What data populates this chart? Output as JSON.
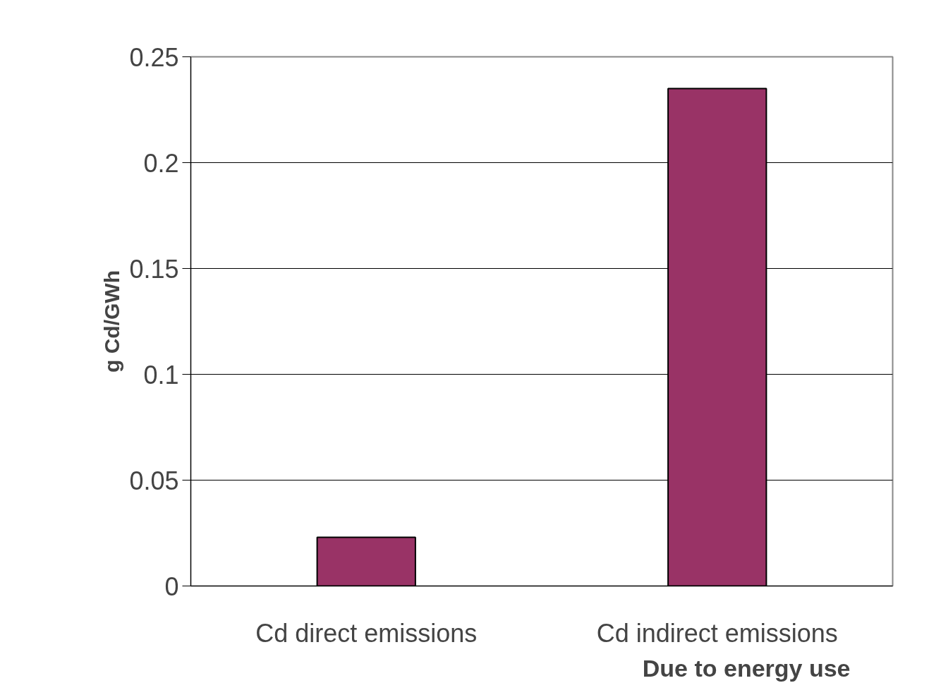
{
  "chart_data": {
    "type": "bar",
    "ylabel": "g Cd/GWh",
    "categories": [
      "Cd direct emissions",
      "Cd indirect emissions"
    ],
    "values": [
      0.023,
      0.235
    ],
    "color": "#993366",
    "ylim": [
      0,
      0.25
    ],
    "yticks": [
      0,
      0.05,
      0.1,
      0.15,
      0.2,
      0.25
    ],
    "grid": "y",
    "annotations": [
      "Due to energy use"
    ]
  }
}
